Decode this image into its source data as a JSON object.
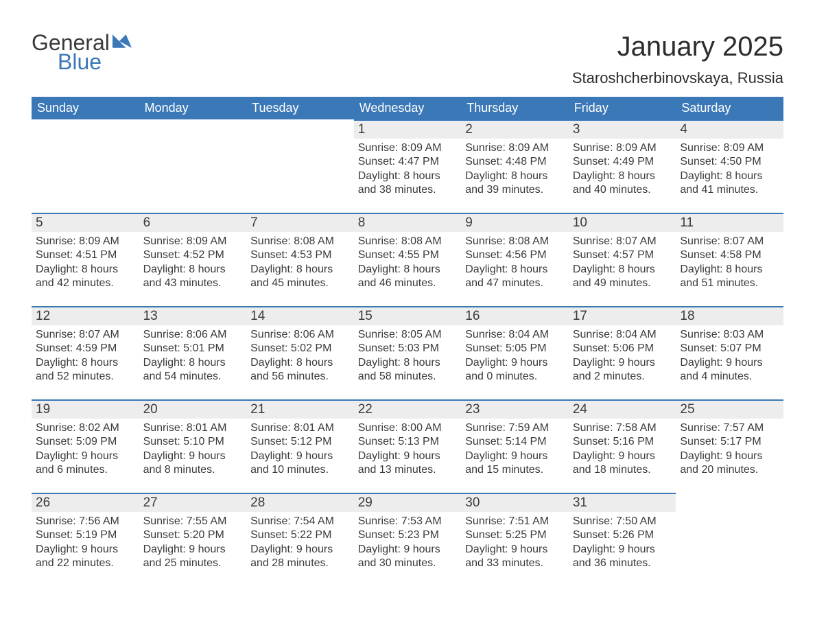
{
  "logo": {
    "word1": "General",
    "word2": "Blue"
  },
  "title": "January 2025",
  "location": "Staroshcherbinovskaya, Russia",
  "colors": {
    "header_bg": "#3b78b8",
    "header_text": "#ffffff",
    "daynum_bg": "#ededed",
    "daynum_border": "#3b78b8",
    "body_text": "#3a3a3a",
    "page_bg": "#ffffff",
    "logo_blue": "#3b78b8"
  },
  "weekdays": [
    "Sunday",
    "Monday",
    "Tuesday",
    "Wednesday",
    "Thursday",
    "Friday",
    "Saturday"
  ],
  "weeks": [
    [
      null,
      null,
      null,
      {
        "n": "1",
        "sunrise": "Sunrise: 8:09 AM",
        "sunset": "Sunset: 4:47 PM",
        "day1": "Daylight: 8 hours",
        "day2": "and 38 minutes."
      },
      {
        "n": "2",
        "sunrise": "Sunrise: 8:09 AM",
        "sunset": "Sunset: 4:48 PM",
        "day1": "Daylight: 8 hours",
        "day2": "and 39 minutes."
      },
      {
        "n": "3",
        "sunrise": "Sunrise: 8:09 AM",
        "sunset": "Sunset: 4:49 PM",
        "day1": "Daylight: 8 hours",
        "day2": "and 40 minutes."
      },
      {
        "n": "4",
        "sunrise": "Sunrise: 8:09 AM",
        "sunset": "Sunset: 4:50 PM",
        "day1": "Daylight: 8 hours",
        "day2": "and 41 minutes."
      }
    ],
    [
      {
        "n": "5",
        "sunrise": "Sunrise: 8:09 AM",
        "sunset": "Sunset: 4:51 PM",
        "day1": "Daylight: 8 hours",
        "day2": "and 42 minutes."
      },
      {
        "n": "6",
        "sunrise": "Sunrise: 8:09 AM",
        "sunset": "Sunset: 4:52 PM",
        "day1": "Daylight: 8 hours",
        "day2": "and 43 minutes."
      },
      {
        "n": "7",
        "sunrise": "Sunrise: 8:08 AM",
        "sunset": "Sunset: 4:53 PM",
        "day1": "Daylight: 8 hours",
        "day2": "and 45 minutes."
      },
      {
        "n": "8",
        "sunrise": "Sunrise: 8:08 AM",
        "sunset": "Sunset: 4:55 PM",
        "day1": "Daylight: 8 hours",
        "day2": "and 46 minutes."
      },
      {
        "n": "9",
        "sunrise": "Sunrise: 8:08 AM",
        "sunset": "Sunset: 4:56 PM",
        "day1": "Daylight: 8 hours",
        "day2": "and 47 minutes."
      },
      {
        "n": "10",
        "sunrise": "Sunrise: 8:07 AM",
        "sunset": "Sunset: 4:57 PM",
        "day1": "Daylight: 8 hours",
        "day2": "and 49 minutes."
      },
      {
        "n": "11",
        "sunrise": "Sunrise: 8:07 AM",
        "sunset": "Sunset: 4:58 PM",
        "day1": "Daylight: 8 hours",
        "day2": "and 51 minutes."
      }
    ],
    [
      {
        "n": "12",
        "sunrise": "Sunrise: 8:07 AM",
        "sunset": "Sunset: 4:59 PM",
        "day1": "Daylight: 8 hours",
        "day2": "and 52 minutes."
      },
      {
        "n": "13",
        "sunrise": "Sunrise: 8:06 AM",
        "sunset": "Sunset: 5:01 PM",
        "day1": "Daylight: 8 hours",
        "day2": "and 54 minutes."
      },
      {
        "n": "14",
        "sunrise": "Sunrise: 8:06 AM",
        "sunset": "Sunset: 5:02 PM",
        "day1": "Daylight: 8 hours",
        "day2": "and 56 minutes."
      },
      {
        "n": "15",
        "sunrise": "Sunrise: 8:05 AM",
        "sunset": "Sunset: 5:03 PM",
        "day1": "Daylight: 8 hours",
        "day2": "and 58 minutes."
      },
      {
        "n": "16",
        "sunrise": "Sunrise: 8:04 AM",
        "sunset": "Sunset: 5:05 PM",
        "day1": "Daylight: 9 hours",
        "day2": "and 0 minutes."
      },
      {
        "n": "17",
        "sunrise": "Sunrise: 8:04 AM",
        "sunset": "Sunset: 5:06 PM",
        "day1": "Daylight: 9 hours",
        "day2": "and 2 minutes."
      },
      {
        "n": "18",
        "sunrise": "Sunrise: 8:03 AM",
        "sunset": "Sunset: 5:07 PM",
        "day1": "Daylight: 9 hours",
        "day2": "and 4 minutes."
      }
    ],
    [
      {
        "n": "19",
        "sunrise": "Sunrise: 8:02 AM",
        "sunset": "Sunset: 5:09 PM",
        "day1": "Daylight: 9 hours",
        "day2": "and 6 minutes."
      },
      {
        "n": "20",
        "sunrise": "Sunrise: 8:01 AM",
        "sunset": "Sunset: 5:10 PM",
        "day1": "Daylight: 9 hours",
        "day2": "and 8 minutes."
      },
      {
        "n": "21",
        "sunrise": "Sunrise: 8:01 AM",
        "sunset": "Sunset: 5:12 PM",
        "day1": "Daylight: 9 hours",
        "day2": "and 10 minutes."
      },
      {
        "n": "22",
        "sunrise": "Sunrise: 8:00 AM",
        "sunset": "Sunset: 5:13 PM",
        "day1": "Daylight: 9 hours",
        "day2": "and 13 minutes."
      },
      {
        "n": "23",
        "sunrise": "Sunrise: 7:59 AM",
        "sunset": "Sunset: 5:14 PM",
        "day1": "Daylight: 9 hours",
        "day2": "and 15 minutes."
      },
      {
        "n": "24",
        "sunrise": "Sunrise: 7:58 AM",
        "sunset": "Sunset: 5:16 PM",
        "day1": "Daylight: 9 hours",
        "day2": "and 18 minutes."
      },
      {
        "n": "25",
        "sunrise": "Sunrise: 7:57 AM",
        "sunset": "Sunset: 5:17 PM",
        "day1": "Daylight: 9 hours",
        "day2": "and 20 minutes."
      }
    ],
    [
      {
        "n": "26",
        "sunrise": "Sunrise: 7:56 AM",
        "sunset": "Sunset: 5:19 PM",
        "day1": "Daylight: 9 hours",
        "day2": "and 22 minutes."
      },
      {
        "n": "27",
        "sunrise": "Sunrise: 7:55 AM",
        "sunset": "Sunset: 5:20 PM",
        "day1": "Daylight: 9 hours",
        "day2": "and 25 minutes."
      },
      {
        "n": "28",
        "sunrise": "Sunrise: 7:54 AM",
        "sunset": "Sunset: 5:22 PM",
        "day1": "Daylight: 9 hours",
        "day2": "and 28 minutes."
      },
      {
        "n": "29",
        "sunrise": "Sunrise: 7:53 AM",
        "sunset": "Sunset: 5:23 PM",
        "day1": "Daylight: 9 hours",
        "day2": "and 30 minutes."
      },
      {
        "n": "30",
        "sunrise": "Sunrise: 7:51 AM",
        "sunset": "Sunset: 5:25 PM",
        "day1": "Daylight: 9 hours",
        "day2": "and 33 minutes."
      },
      {
        "n": "31",
        "sunrise": "Sunrise: 7:50 AM",
        "sunset": "Sunset: 5:26 PM",
        "day1": "Daylight: 9 hours",
        "day2": "and 36 minutes."
      },
      null
    ]
  ]
}
